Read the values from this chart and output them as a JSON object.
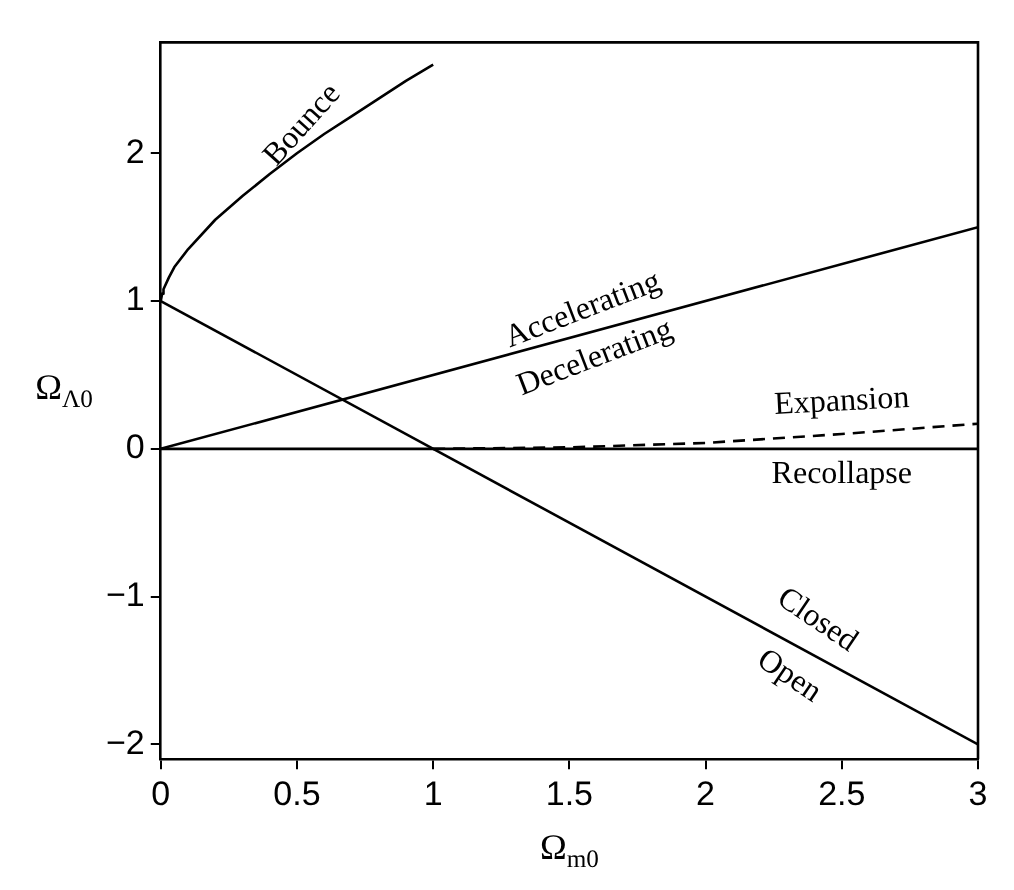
{
  "chart_data": {
    "type": "line",
    "xlabel": "Ω$_{m0}$",
    "ylabel": "Ω$_{Λ0}$",
    "xlim": [
      0,
      3
    ],
    "xticks": [
      0,
      0.5,
      1,
      1.5,
      2,
      2.5,
      3
    ],
    "ylim": [
      -2.1,
      2.75
    ],
    "yticks": [
      {
        "value": -2,
        "label": "−2"
      },
      {
        "value": -1,
        "label": "−1"
      },
      0,
      1,
      2
    ],
    "grid": false,
    "legend": false,
    "marker": "none",
    "series": [
      {
        "color": "#000000",
        "line_style": "solid",
        "x": [
          0,
          0.005,
          0.01,
          0.03,
          0.05,
          0.1,
          0.2,
          0.3,
          0.4,
          0.5,
          0.6,
          0.7,
          0.8,
          0.9,
          1.0
        ],
        "values": [
          1,
          1.05,
          1.08,
          1.16,
          1.23,
          1.35,
          1.55,
          1.71,
          1.86,
          2,
          2.13,
          2.25,
          2.37,
          2.49,
          2.6
        ]
      },
      {
        "color": "#000000",
        "line_style": "solid",
        "x": [
          0,
          3
        ],
        "values": [
          0,
          1.5
        ]
      },
      {
        "color": "#000000",
        "line_style": "solid",
        "x": [
          0,
          3
        ],
        "values": [
          1,
          -2
        ]
      },
      {
        "color": "#000000",
        "line_style": "solid",
        "x": [
          0,
          3
        ],
        "values": [
          0,
          0
        ]
      },
      {
        "color": "#000000",
        "line_style": "dashed",
        "x": [
          1,
          1.5,
          2,
          2.5,
          3
        ],
        "values": [
          0,
          0.01,
          0.04,
          0.1,
          0.17
        ]
      }
    ],
    "annotations": [
      {
        "text": "Bounce",
        "x": 0.55,
        "y": 2.0
      },
      {
        "text": "Accelerating",
        "x": 1.55,
        "y": 0.775
      },
      {
        "text": "Decelerating",
        "x": 1.55,
        "y": 0.775
      },
      {
        "text": "Expansion",
        "x": 2.5,
        "y": 0.1
      },
      {
        "text": "Recollapse",
        "x": 2.5,
        "y": 0
      },
      {
        "text": "Closed",
        "x": 2.35,
        "y": -1.35
      },
      {
        "text": "Open",
        "x": 2.35,
        "y": -1.35
      }
    ]
  }
}
